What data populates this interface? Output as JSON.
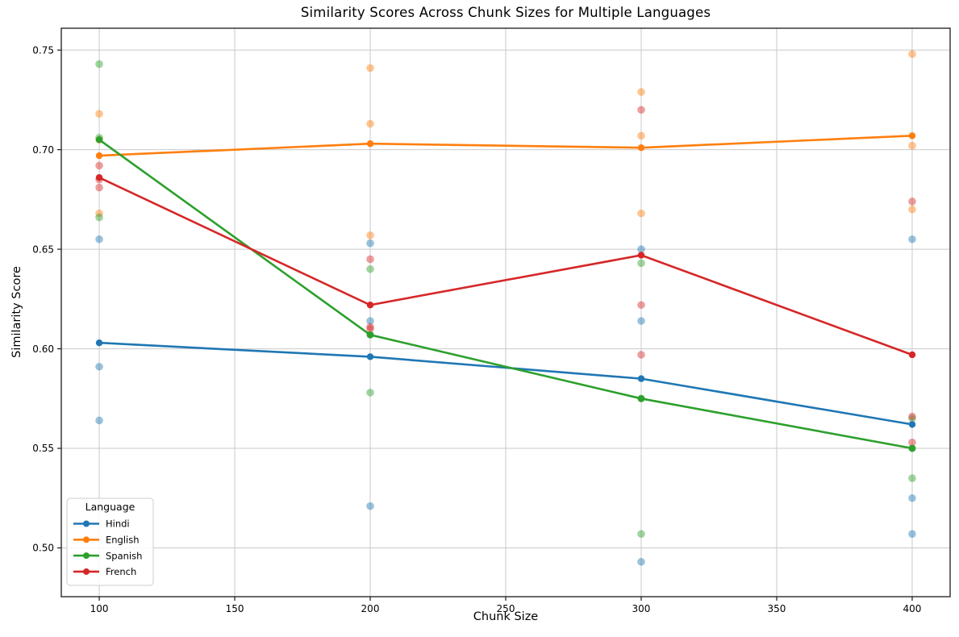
{
  "chart_data": {
    "type": "line",
    "title": "Similarity Scores Across Chunk Sizes for Multiple Languages",
    "xlabel": "Chunk Size",
    "ylabel": "Similarity Score",
    "x": [
      100,
      200,
      300,
      400
    ],
    "xticks": [
      100,
      150,
      200,
      250,
      300,
      350,
      400
    ],
    "yticks": [
      0.5,
      0.55,
      0.6,
      0.65,
      0.7,
      0.75
    ],
    "xlim": [
      86,
      414
    ],
    "ylim": [
      0.4755,
      0.761
    ],
    "grid": true,
    "legend": {
      "title": "Language",
      "position": "lower-left"
    },
    "series": [
      {
        "name": "Hindi",
        "color": "#1f77b4",
        "means": [
          0.603,
          0.596,
          0.585,
          0.562
        ],
        "scatter": [
          [
            0.655,
            0.591,
            0.564
          ],
          [
            0.653,
            0.614,
            0.521
          ],
          [
            0.65,
            0.614,
            0.493
          ],
          [
            0.655,
            0.525,
            0.507
          ]
        ]
      },
      {
        "name": "English",
        "color": "#ff7f0e",
        "means": [
          0.697,
          0.703,
          0.701,
          0.707
        ],
        "scatter": [
          [
            0.718,
            0.705,
            0.668
          ],
          [
            0.741,
            0.713,
            0.657
          ],
          [
            0.729,
            0.707,
            0.668
          ],
          [
            0.748,
            0.702,
            0.67
          ]
        ]
      },
      {
        "name": "Spanish",
        "color": "#2ca02c",
        "means": [
          0.705,
          0.607,
          0.575,
          0.55
        ],
        "scatter": [
          [
            0.743,
            0.706,
            0.666
          ],
          [
            0.64,
            0.607,
            0.578
          ],
          [
            0.643,
            0.575,
            0.507
          ],
          [
            0.565,
            0.55,
            0.535
          ]
        ]
      },
      {
        "name": "French",
        "color": "#d62728",
        "means": [
          0.686,
          0.622,
          0.647,
          0.597
        ],
        "scatter": [
          [
            0.692,
            0.685,
            0.681
          ],
          [
            0.645,
            0.611,
            0.61
          ],
          [
            0.72,
            0.622,
            0.597
          ],
          [
            0.674,
            0.566,
            0.553
          ]
        ]
      }
    ],
    "scatter_alpha": 0.45,
    "grid_color": "#c9c9c9",
    "spine_color": "#1a1a1a",
    "text_color": "#000000"
  }
}
